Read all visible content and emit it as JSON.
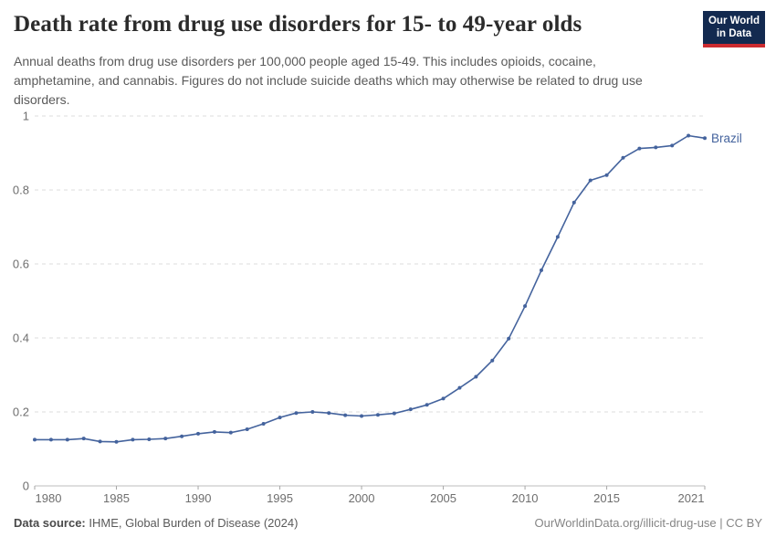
{
  "header": {
    "title": "Death rate from drug use disorders for 15- to 49-year olds",
    "subtitle": "Annual deaths from drug use disorders per 100,000 people aged 15-49. This includes opioids, cocaine, amphetamine, and cannabis. Figures do not include suicide deaths which may otherwise be related to drug use disorders.",
    "logo": {
      "line1": "Our World",
      "line2": "in Data",
      "bg_color": "#132a50",
      "accent_color": "#cc2b30"
    }
  },
  "chart_data": {
    "type": "line",
    "title": "Death rate from drug use disorders for 15- to 49-year olds",
    "xlabel": "",
    "ylabel": "",
    "xlim": [
      1980,
      2021
    ],
    "ylim": [
      0,
      1
    ],
    "grid": "horizontal-dashed",
    "legend_position": "line-end-label",
    "x_ticks": [
      1980,
      1985,
      1990,
      1995,
      2000,
      2005,
      2010,
      2015,
      2021
    ],
    "y_ticks": [
      0,
      0.2,
      0.4,
      0.6,
      0.8,
      1
    ],
    "y_tick_labels": [
      "0",
      "0.2",
      "0.4",
      "0.6",
      "0.8",
      "1"
    ],
    "series": [
      {
        "name": "Brazil",
        "color": "#44639d",
        "x": [
          1980,
          1981,
          1982,
          1983,
          1984,
          1985,
          1986,
          1987,
          1988,
          1989,
          1990,
          1991,
          1992,
          1993,
          1994,
          1995,
          1996,
          1997,
          1998,
          1999,
          2000,
          2001,
          2002,
          2003,
          2004,
          2005,
          2006,
          2007,
          2008,
          2009,
          2010,
          2011,
          2012,
          2013,
          2014,
          2015,
          2016,
          2017,
          2018,
          2019,
          2020,
          2021
        ],
        "values": [
          0.125,
          0.125,
          0.125,
          0.128,
          0.12,
          0.119,
          0.125,
          0.126,
          0.128,
          0.134,
          0.141,
          0.146,
          0.144,
          0.153,
          0.168,
          0.185,
          0.197,
          0.2,
          0.197,
          0.191,
          0.189,
          0.192,
          0.196,
          0.207,
          0.219,
          0.236,
          0.265,
          0.295,
          0.339,
          0.398,
          0.486,
          0.583,
          0.673,
          0.766,
          0.826,
          0.84,
          0.887,
          0.912,
          0.915,
          0.92,
          0.947,
          0.94
        ]
      }
    ]
  },
  "footer": {
    "source_label": "Data source:",
    "source_text": " IHME, Global Burden of Disease (2024)",
    "link_text": "OurWorldinData.org/illicit-drug-use | CC BY"
  }
}
